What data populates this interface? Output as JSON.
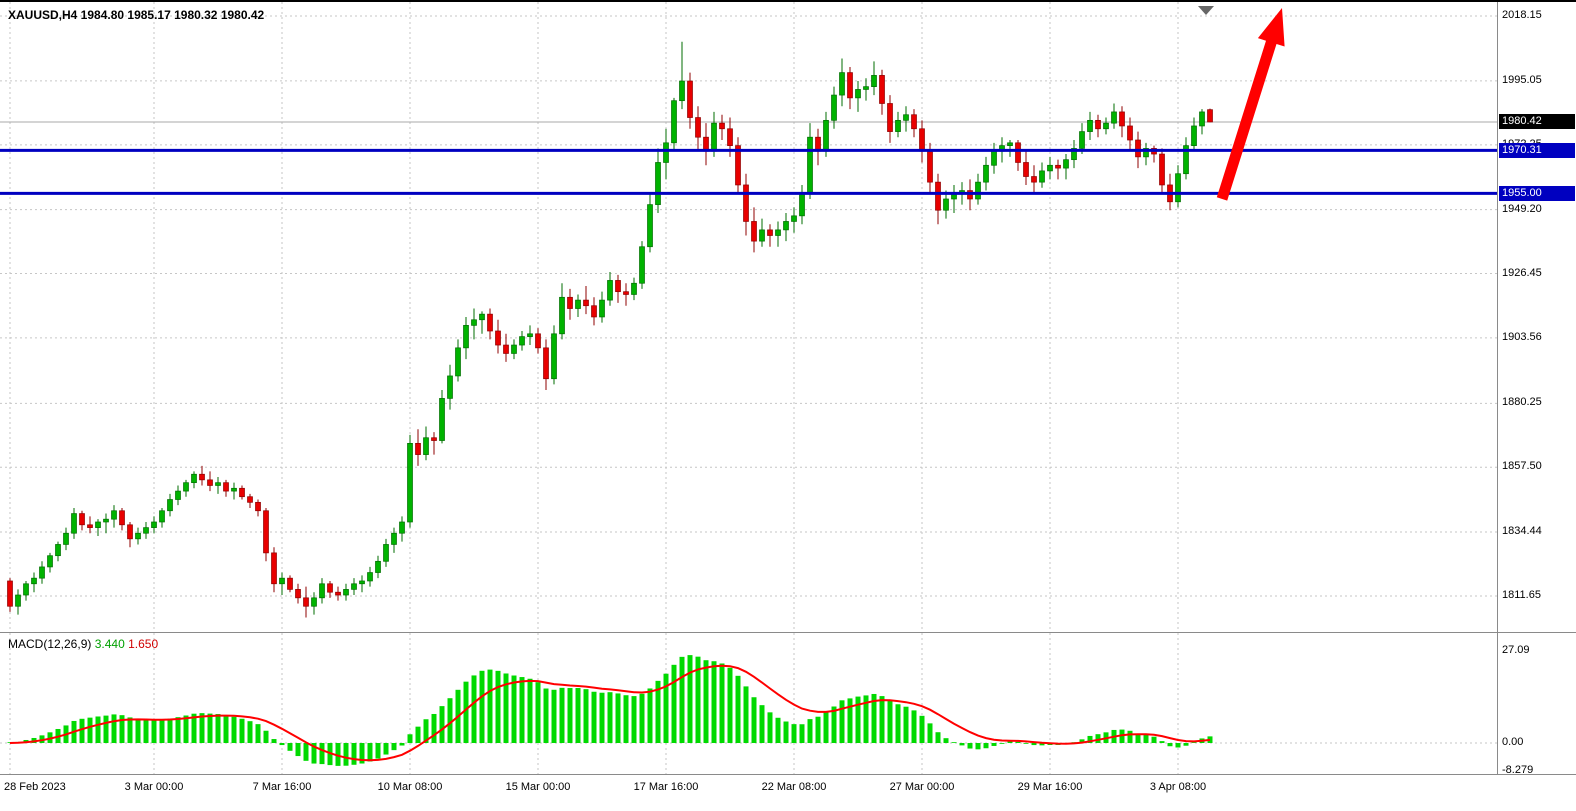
{
  "header": {
    "title": "XAUUSD,H4  1984.80 1985.17 1980.32 1980.42"
  },
  "macd_panel": {
    "name": "MACD(12,26,9)",
    "value_main": "3.440",
    "value_signal": "1.650"
  },
  "chart_data": {
    "type": "candlestick",
    "symbol": "XAUUSD",
    "timeframe": "H4",
    "current_candle_ohlc": [
      1984.8,
      1985.17,
      1980.32,
      1980.42
    ],
    "current_price": {
      "value": 1980.42,
      "label": "1980.42"
    },
    "y_axis_labels": [
      "2018.15",
      "1995.05",
      "1972.25",
      "1949.20",
      "1926.45",
      "1903.56",
      "1880.25",
      "1857.50",
      "1834.44",
      "1811.65"
    ],
    "y_axis_range": [
      1811.65,
      2018.15
    ],
    "grid": true,
    "x_ticks": [
      {
        "index": 0,
        "label": "28 Feb 2023"
      },
      {
        "index": 18,
        "label": "3 Mar 00:00"
      },
      {
        "index": 34,
        "label": "7 Mar 16:00"
      },
      {
        "index": 50,
        "label": "10 Mar 08:00"
      },
      {
        "index": 66,
        "label": "15 Mar 00:00"
      },
      {
        "index": 82,
        "label": "17 Mar 16:00"
      },
      {
        "index": 98,
        "label": "22 Mar 08:00"
      },
      {
        "index": 114,
        "label": "27 Mar 00:00"
      },
      {
        "index": 130,
        "label": "29 Mar 16:00"
      },
      {
        "index": 146,
        "label": "3 Apr 08:00"
      }
    ],
    "hlines": [
      {
        "price": 1970.31,
        "label": "1970.31"
      },
      {
        "price": 1955.0,
        "label": "1955.00"
      }
    ],
    "arrow": {
      "from_index": 151.5,
      "from_price": 1953,
      "to_index": 159,
      "to_price": 2021
    },
    "shift_marker_index": 149.5,
    "indicator": {
      "name": "MACD",
      "params": [
        12,
        26,
        9
      ],
      "axis_labels": [
        "27.09",
        "0.00",
        "-8.279"
      ],
      "last_macd": 3.44,
      "last_signal": 1.65
    },
    "colors": {
      "up": "#00b300",
      "up_border": "#006e00",
      "down": "#e80000",
      "down_border": "#8f0000",
      "histogram": "#00d900",
      "signal": "#ff0000",
      "sr_line": "#0000c0",
      "arrow": "#ff0000",
      "badge_current_bg": "#000000",
      "bid_line": "#a8a8a8",
      "grid": "#c6c6c6"
    },
    "candles": [
      [
        1817,
        1818,
        1806,
        1808
      ],
      [
        1808,
        1814,
        1805,
        1812
      ],
      [
        1812,
        1817,
        1810,
        1816
      ],
      [
        1816,
        1820,
        1813,
        1818
      ],
      [
        1818,
        1824,
        1816,
        1822
      ],
      [
        1822,
        1827,
        1820,
        1826
      ],
      [
        1826,
        1831,
        1824,
        1830
      ],
      [
        1830,
        1836,
        1828,
        1834
      ],
      [
        1834,
        1843,
        1832,
        1841
      ],
      [
        1841,
        1842,
        1835,
        1837
      ],
      [
        1837,
        1840,
        1834,
        1836
      ],
      [
        1836,
        1839,
        1833,
        1838
      ],
      [
        1838,
        1841,
        1834,
        1839
      ],
      [
        1839,
        1844,
        1836,
        1842
      ],
      [
        1842,
        1843,
        1835,
        1837
      ],
      [
        1837,
        1838,
        1829,
        1832
      ],
      [
        1832,
        1836,
        1830,
        1834
      ],
      [
        1834,
        1838,
        1832,
        1836
      ],
      [
        1836,
        1840,
        1834,
        1838
      ],
      [
        1838,
        1843,
        1836,
        1842
      ],
      [
        1842,
        1848,
        1840,
        1846
      ],
      [
        1846,
        1851,
        1844,
        1849
      ],
      [
        1849,
        1853,
        1847,
        1852
      ],
      [
        1852,
        1856,
        1850,
        1855
      ],
      [
        1855,
        1858,
        1851,
        1853
      ],
      [
        1853,
        1856,
        1849,
        1851
      ],
      [
        1851,
        1854,
        1848,
        1852
      ],
      [
        1852,
        1853,
        1847,
        1849
      ],
      [
        1849,
        1852,
        1846,
        1850
      ],
      [
        1850,
        1851,
        1846,
        1847
      ],
      [
        1847,
        1848,
        1843,
        1845
      ],
      [
        1845,
        1846,
        1840,
        1842
      ],
      [
        1842,
        1843,
        1824,
        1827
      ],
      [
        1827,
        1829,
        1813,
        1816
      ],
      [
        1816,
        1820,
        1812,
        1818
      ],
      [
        1818,
        1819,
        1813,
        1814
      ],
      [
        1814,
        1816,
        1809,
        1811
      ],
      [
        1811,
        1815,
        1804,
        1808
      ],
      [
        1808,
        1813,
        1805,
        1811
      ],
      [
        1811,
        1818,
        1809,
        1816
      ],
      [
        1816,
        1817,
        1811,
        1813
      ],
      [
        1813,
        1815,
        1810,
        1812
      ],
      [
        1812,
        1816,
        1810,
        1814
      ],
      [
        1814,
        1818,
        1812,
        1816
      ],
      [
        1816,
        1819,
        1813,
        1817
      ],
      [
        1817,
        1822,
        1815,
        1820
      ],
      [
        1820,
        1826,
        1818,
        1824
      ],
      [
        1824,
        1832,
        1822,
        1830
      ],
      [
        1830,
        1836,
        1827,
        1834
      ],
      [
        1834,
        1840,
        1831,
        1838
      ],
      [
        1838,
        1869,
        1836,
        1866
      ],
      [
        1866,
        1871,
        1858,
        1862
      ],
      [
        1862,
        1872,
        1860,
        1868
      ],
      [
        1868,
        1870,
        1862,
        1867
      ],
      [
        1867,
        1885,
        1866,
        1882
      ],
      [
        1882,
        1894,
        1878,
        1890
      ],
      [
        1890,
        1903,
        1888,
        1900
      ],
      [
        1900,
        1911,
        1896,
        1908
      ],
      [
        1908,
        1914,
        1903,
        1910
      ],
      [
        1910,
        1913,
        1905,
        1912
      ],
      [
        1912,
        1914,
        1903,
        1906
      ],
      [
        1906,
        1910,
        1898,
        1901
      ],
      [
        1901,
        1905,
        1895,
        1898
      ],
      [
        1898,
        1903,
        1896,
        1901
      ],
      [
        1901,
        1906,
        1899,
        1904
      ],
      [
        1904,
        1908,
        1901,
        1905
      ],
      [
        1905,
        1907,
        1898,
        1900
      ],
      [
        1900,
        1903,
        1885,
        1889
      ],
      [
        1889,
        1908,
        1887,
        1905
      ],
      [
        1905,
        1923,
        1903,
        1918
      ],
      [
        1918,
        1921,
        1910,
        1914
      ],
      [
        1914,
        1919,
        1911,
        1917
      ],
      [
        1917,
        1922,
        1912,
        1915
      ],
      [
        1915,
        1918,
        1908,
        1911
      ],
      [
        1911,
        1920,
        1909,
        1917
      ],
      [
        1917,
        1927,
        1915,
        1924
      ],
      [
        1924,
        1926,
        1916,
        1920
      ],
      [
        1920,
        1923,
        1915,
        1919
      ],
      [
        1919,
        1925,
        1917,
        1923
      ],
      [
        1923,
        1938,
        1921,
        1936
      ],
      [
        1936,
        1955,
        1934,
        1951
      ],
      [
        1951,
        1971,
        1948,
        1966
      ],
      [
        1966,
        1978,
        1960,
        1973
      ],
      [
        1973,
        1989,
        1970,
        1988
      ],
      [
        1988,
        2009,
        1985,
        1995
      ],
      [
        1995,
        1998,
        1978,
        1982
      ],
      [
        1982,
        1986,
        1970,
        1975
      ],
      [
        1975,
        1980,
        1965,
        1970
      ],
      [
        1970,
        1984,
        1968,
        1980
      ],
      [
        1980,
        1983,
        1974,
        1978
      ],
      [
        1978,
        1982,
        1968,
        1972
      ],
      [
        1972,
        1975,
        1955,
        1958
      ],
      [
        1958,
        1962,
        1940,
        1945
      ],
      [
        1945,
        1950,
        1934,
        1938
      ],
      [
        1938,
        1946,
        1936,
        1942
      ],
      [
        1942,
        1944,
        1936,
        1940
      ],
      [
        1940,
        1945,
        1936,
        1942
      ],
      [
        1942,
        1948,
        1938,
        1945
      ],
      [
        1945,
        1950,
        1941,
        1947
      ],
      [
        1947,
        1958,
        1944,
        1955
      ],
      [
        1955,
        1980,
        1953,
        1975
      ],
      [
        1975,
        1978,
        1965,
        1970
      ],
      [
        1970,
        1984,
        1968,
        1981
      ],
      [
        1981,
        1993,
        1978,
        1990
      ],
      [
        1990,
        2003,
        1986,
        1998
      ],
      [
        1998,
        2000,
        1985,
        1989
      ],
      [
        1989,
        1995,
        1984,
        1992
      ],
      [
        1992,
        1996,
        1988,
        1993
      ],
      [
        1993,
        2002,
        1990,
        1997
      ],
      [
        1997,
        1999,
        1983,
        1987
      ],
      [
        1987,
        1990,
        1973,
        1977
      ],
      [
        1977,
        1984,
        1975,
        1981
      ],
      [
        1981,
        1986,
        1977,
        1983
      ],
      [
        1983,
        1985,
        1975,
        1978
      ],
      [
        1978,
        1981,
        1966,
        1970
      ],
      [
        1970,
        1973,
        1955,
        1959
      ],
      [
        1959,
        1962,
        1944,
        1949
      ],
      [
        1949,
        1956,
        1946,
        1953
      ],
      [
        1953,
        1958,
        1948,
        1955
      ],
      [
        1955,
        1959,
        1951,
        1956
      ],
      [
        1956,
        1960,
        1949,
        1953
      ],
      [
        1953,
        1962,
        1951,
        1959
      ],
      [
        1959,
        1968,
        1956,
        1965
      ],
      [
        1965,
        1973,
        1962,
        1970
      ],
      [
        1970,
        1975,
        1966,
        1972
      ],
      [
        1972,
        1974,
        1968,
        1973
      ],
      [
        1973,
        1974,
        1963,
        1966
      ],
      [
        1966,
        1970,
        1958,
        1961
      ],
      [
        1961,
        1965,
        1955,
        1959
      ],
      [
        1959,
        1966,
        1957,
        1963
      ],
      [
        1963,
        1968,
        1960,
        1965
      ],
      [
        1965,
        1967,
        1960,
        1964
      ],
      [
        1964,
        1969,
        1960,
        1967
      ],
      [
        1967,
        1974,
        1964,
        1971
      ],
      [
        1971,
        1980,
        1969,
        1977
      ],
      [
        1977,
        1984,
        1974,
        1981
      ],
      [
        1981,
        1983,
        1975,
        1978
      ],
      [
        1978,
        1982,
        1976,
        1980
      ],
      [
        1980,
        1987,
        1978,
        1984
      ],
      [
        1984,
        1986,
        1975,
        1979
      ],
      [
        1979,
        1982,
        1970,
        1974
      ],
      [
        1974,
        1977,
        1964,
        1968
      ],
      [
        1968,
        1973,
        1965,
        1971
      ],
      [
        1971,
        1972,
        1966,
        1969
      ],
      [
        1969,
        1971,
        1955,
        1958
      ],
      [
        1958,
        1962,
        1949,
        1952
      ],
      [
        1952,
        1965,
        1950,
        1962
      ],
      [
        1962,
        1975,
        1960,
        1972
      ],
      [
        1972,
        1982,
        1970,
        1979
      ],
      [
        1979,
        1985,
        1976,
        1984
      ],
      [
        1984.8,
        1985.17,
        1980.32,
        1980.42
      ]
    ]
  }
}
